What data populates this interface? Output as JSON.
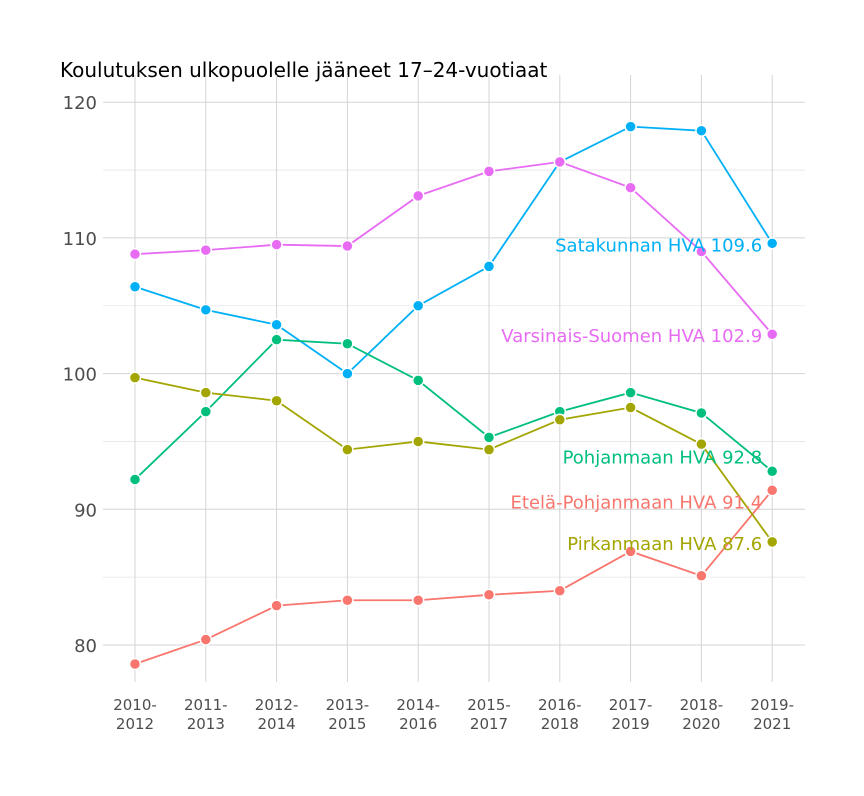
{
  "chart_data": {
    "type": "line",
    "title": "Koulutuksen ulkopuolelle jääneet 17–24-vuotiaat",
    "xlabel": "",
    "ylabel": "",
    "categories": [
      "2010-\n2012",
      "2011-\n2013",
      "2012-\n2014",
      "2013-\n2015",
      "2014-\n2016",
      "2015-\n2017",
      "2016-\n2018",
      "2017-\n2019",
      "2018-\n2020",
      "2019-\n2021"
    ],
    "ylim": [
      76.5,
      122
    ],
    "yticks": [
      80,
      90,
      100,
      110,
      120
    ],
    "grid": true,
    "legend": "direct labels at line ends",
    "series": [
      {
        "name": "Satakunnan HVA",
        "label": "Satakunnan HVA 109.6",
        "color": "#00B0F6",
        "values": [
          106.4,
          104.7,
          103.6,
          100.0,
          105.0,
          107.9,
          115.6,
          118.2,
          117.9,
          109.6
        ]
      },
      {
        "name": "Varsinais-Suomen HVA",
        "label": "Varsinais-Suomen HVA 102.9",
        "color": "#E76BF3",
        "values": [
          108.8,
          109.1,
          109.5,
          109.4,
          113.1,
          114.9,
          115.6,
          113.7,
          109.0,
          102.9
        ]
      },
      {
        "name": "Pohjanmaan HVA",
        "label": "Pohjanmaan HVA 92.8",
        "color": "#00BF7D",
        "values": [
          92.2,
          97.2,
          102.5,
          102.2,
          99.5,
          95.3,
          97.2,
          98.6,
          97.1,
          92.8
        ]
      },
      {
        "name": "Etelä-Pohjanmaan HVA",
        "label": "Etelä-Pohjanmaan HVA 91.4",
        "color": "#F8766D",
        "values": [
          78.6,
          80.4,
          82.9,
          83.3,
          83.3,
          83.7,
          84.0,
          86.9,
          85.1,
          91.4
        ]
      },
      {
        "name": "Pirkanmaan HVA",
        "label": "Pirkanmaan HVA 87.6",
        "color": "#A3A500",
        "values": [
          99.7,
          98.6,
          98.0,
          94.4,
          95.0,
          94.4,
          96.6,
          97.5,
          94.8,
          87.6
        ]
      }
    ]
  }
}
